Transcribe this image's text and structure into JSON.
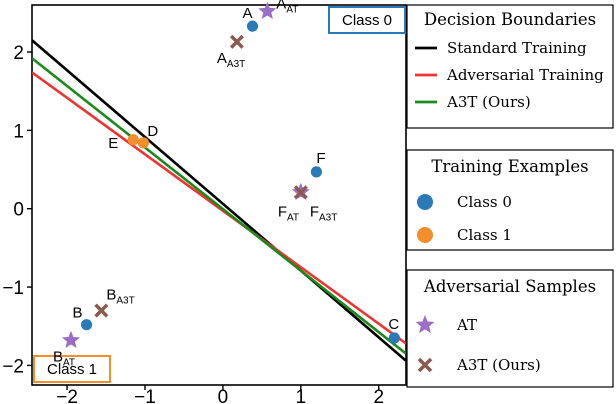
{
  "chart_data": {
    "type": "scatter",
    "title": "",
    "xlabel": "",
    "ylabel": "",
    "xlim": [
      -2.45,
      2.35
    ],
    "ylim": [
      -2.25,
      2.6
    ],
    "xticks": [
      -2,
      -1,
      0,
      1,
      2
    ],
    "yticks": [
      -2,
      -1,
      0,
      1,
      2
    ],
    "xtick_labels": [
      "−2",
      "−1",
      "0",
      "1",
      "2"
    ],
    "ytick_labels": [
      "−2",
      "−1",
      "0",
      "1",
      "2"
    ],
    "grid": false,
    "class_regions": [
      {
        "label": "Class 0",
        "position": "top-right",
        "color": "#2a7ab8"
      },
      {
        "label": "Class 1",
        "position": "bottom-left",
        "color": "#f28e2b"
      }
    ],
    "boundaries": [
      {
        "name": "Standard Training",
        "color": "#000000",
        "x": [
          -2.45,
          2.35
        ],
        "y": [
          2.15,
          -1.94
        ]
      },
      {
        "name": "Adversarial Training",
        "color": "#ee3333",
        "x": [
          -2.45,
          2.35
        ],
        "y": [
          1.74,
          -1.72
        ]
      },
      {
        "name": "A3T (Ours)",
        "color": "#1a8a1a",
        "x": [
          -2.45,
          2.35
        ],
        "y": [
          1.92,
          -1.85
        ]
      }
    ],
    "training_examples": [
      {
        "id": "A",
        "label": "A",
        "class": 0,
        "x": 0.38,
        "y": 2.33
      },
      {
        "id": "B",
        "label": "B",
        "class": 0,
        "x": -1.75,
        "y": -1.48
      },
      {
        "id": "C",
        "label": "C",
        "class": 0,
        "x": 2.2,
        "y": -1.65
      },
      {
        "id": "D",
        "label": "D",
        "class": 1,
        "x": -1.02,
        "y": 0.84
      },
      {
        "id": "E",
        "label": "E",
        "class": 1,
        "x": -1.15,
        "y": 0.88
      },
      {
        "id": "F",
        "label": "F",
        "class": 0,
        "x": 1.2,
        "y": 0.47
      }
    ],
    "adversarial_samples": [
      {
        "id": "A_AT",
        "base": "A",
        "sub": "AT",
        "kind": "AT",
        "x": 0.57,
        "y": 2.52
      },
      {
        "id": "A_A3T",
        "base": "A",
        "sub": "A3T",
        "kind": "A3T",
        "x": 0.18,
        "y": 2.13
      },
      {
        "id": "B_AT",
        "base": "B",
        "sub": "AT",
        "kind": "AT",
        "x": -1.95,
        "y": -1.68
      },
      {
        "id": "B_A3T",
        "base": "B",
        "sub": "A3T",
        "kind": "A3T",
        "x": -1.56,
        "y": -1.3
      },
      {
        "id": "F_AT",
        "base": "F",
        "sub": "AT",
        "kind": "AT",
        "x": 1.0,
        "y": 0.21
      },
      {
        "id": "F_A3T",
        "base": "F",
        "sub": "A3T",
        "kind": "A3T",
        "x": 1.0,
        "y": 0.21
      }
    ],
    "legends": [
      {
        "title": "Decision Boundaries",
        "entries": [
          {
            "label": "Standard Training",
            "marker": "line",
            "color": "#000000"
          },
          {
            "label": "Adversarial Training",
            "marker": "line",
            "color": "#ee3333"
          },
          {
            "label": "A3T (Ours)",
            "marker": "line",
            "color": "#1a8a1a"
          }
        ]
      },
      {
        "title": "Training Examples",
        "entries": [
          {
            "label": "Class 0",
            "marker": "circle",
            "color": "#2a7ab8"
          },
          {
            "label": "Class 1",
            "marker": "circle",
            "color": "#f28e2b"
          }
        ]
      },
      {
        "title": "Adversarial Samples",
        "entries": [
          {
            "label": "AT",
            "marker": "star",
            "color": "#9b6fc6"
          },
          {
            "label": "A3T (Ours)",
            "marker": "cross",
            "color": "#8c5a4f"
          }
        ]
      }
    ],
    "colors": {
      "class0": "#2a7ab8",
      "class1": "#f28e2b",
      "at_marker": "#9b6fc6",
      "a3t_marker": "#8c5a4f"
    }
  }
}
